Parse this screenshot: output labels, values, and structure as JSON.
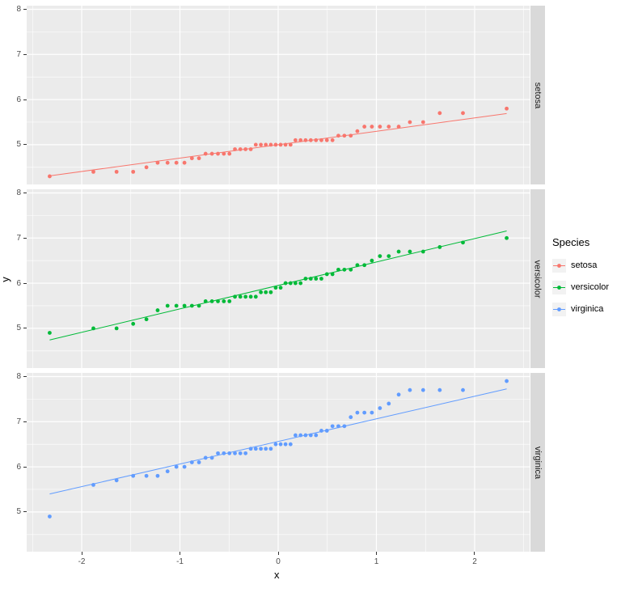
{
  "chart_data": {
    "type": "scatter",
    "subtype": "qq-plot-faceted",
    "title": "",
    "xlabel": "x",
    "ylabel": "y",
    "panel_background": "#EBEBEB",
    "grid_color": "#FFFFFF",
    "strip_background": "#D9D9D9",
    "x_theoretical_quantiles": [
      -2.326,
      -1.881,
      -1.645,
      -1.476,
      -1.341,
      -1.227,
      -1.126,
      -1.036,
      -0.954,
      -0.878,
      -0.806,
      -0.739,
      -0.674,
      -0.613,
      -0.553,
      -0.496,
      -0.44,
      -0.385,
      -0.332,
      -0.279,
      -0.228,
      -0.176,
      -0.126,
      -0.075,
      -0.025,
      0.025,
      0.075,
      0.126,
      0.176,
      0.228,
      0.279,
      0.332,
      0.385,
      0.44,
      0.496,
      0.553,
      0.613,
      0.674,
      0.739,
      0.806,
      0.878,
      0.954,
      1.036,
      1.126,
      1.227,
      1.341,
      1.476,
      1.645,
      1.881,
      2.326
    ],
    "facets": [
      {
        "label": "setosa",
        "color": "#F8766D",
        "y": [
          4.3,
          4.4,
          4.4,
          4.4,
          4.5,
          4.6,
          4.6,
          4.6,
          4.6,
          4.7,
          4.7,
          4.8,
          4.8,
          4.8,
          4.8,
          4.8,
          4.9,
          4.9,
          4.9,
          4.9,
          5.0,
          5.0,
          5.0,
          5.0,
          5.0,
          5.0,
          5.0,
          5.0,
          5.1,
          5.1,
          5.1,
          5.1,
          5.1,
          5.1,
          5.1,
          5.1,
          5.2,
          5.2,
          5.2,
          5.3,
          5.4,
          5.4,
          5.4,
          5.4,
          5.4,
          5.5,
          5.5,
          5.7,
          5.7,
          5.8
        ],
        "qq_line": {
          "slope": 0.2965,
          "intercept": 5.0
        }
      },
      {
        "label": "versicolor",
        "color": "#00BA38",
        "y": [
          4.9,
          5.0,
          5.0,
          5.1,
          5.2,
          5.4,
          5.5,
          5.5,
          5.5,
          5.5,
          5.5,
          5.6,
          5.6,
          5.6,
          5.6,
          5.6,
          5.7,
          5.7,
          5.7,
          5.7,
          5.7,
          5.8,
          5.8,
          5.8,
          5.9,
          5.9,
          6.0,
          6.0,
          6.0,
          6.0,
          6.1,
          6.1,
          6.1,
          6.1,
          6.2,
          6.2,
          6.3,
          6.3,
          6.3,
          6.4,
          6.4,
          6.5,
          6.6,
          6.6,
          6.7,
          6.7,
          6.7,
          6.8,
          6.9,
          7.0
        ],
        "qq_line": {
          "slope": 0.5189,
          "intercept": 5.95
        }
      },
      {
        "label": "virginica",
        "color": "#619CFF",
        "y": [
          4.9,
          5.6,
          5.7,
          5.8,
          5.8,
          5.8,
          5.9,
          6.0,
          6.0,
          6.1,
          6.1,
          6.2,
          6.2,
          6.3,
          6.3,
          6.3,
          6.3,
          6.3,
          6.3,
          6.4,
          6.4,
          6.4,
          6.4,
          6.4,
          6.5,
          6.5,
          6.5,
          6.5,
          6.7,
          6.7,
          6.7,
          6.7,
          6.7,
          6.8,
          6.8,
          6.9,
          6.9,
          6.9,
          7.1,
          7.2,
          7.2,
          7.2,
          7.3,
          7.4,
          7.6,
          7.7,
          7.7,
          7.7,
          7.7,
          7.9
        ],
        "qq_line": {
          "slope": 0.5004,
          "intercept": 6.5625
        }
      }
    ],
    "axis": {
      "x_ticks": [
        -2,
        -1,
        0,
        1,
        2
      ],
      "y_ticks": [
        5,
        6,
        7,
        8
      ],
      "x_minor": [
        -2.5,
        -1.5,
        -0.5,
        0.5,
        1.5,
        2.5
      ],
      "y_minor": [
        4.5,
        5.5,
        6.5,
        7.5
      ],
      "xlim": [
        -2.56,
        2.56
      ],
      "ylim": [
        4.12,
        8.08
      ],
      "grid": true
    },
    "legend": {
      "title": "Species",
      "position": "right",
      "entries": [
        {
          "label": "setosa",
          "color": "#F8766D"
        },
        {
          "label": "versicolor",
          "color": "#00BA38"
        },
        {
          "label": "virginica",
          "color": "#619CFF"
        }
      ]
    }
  }
}
